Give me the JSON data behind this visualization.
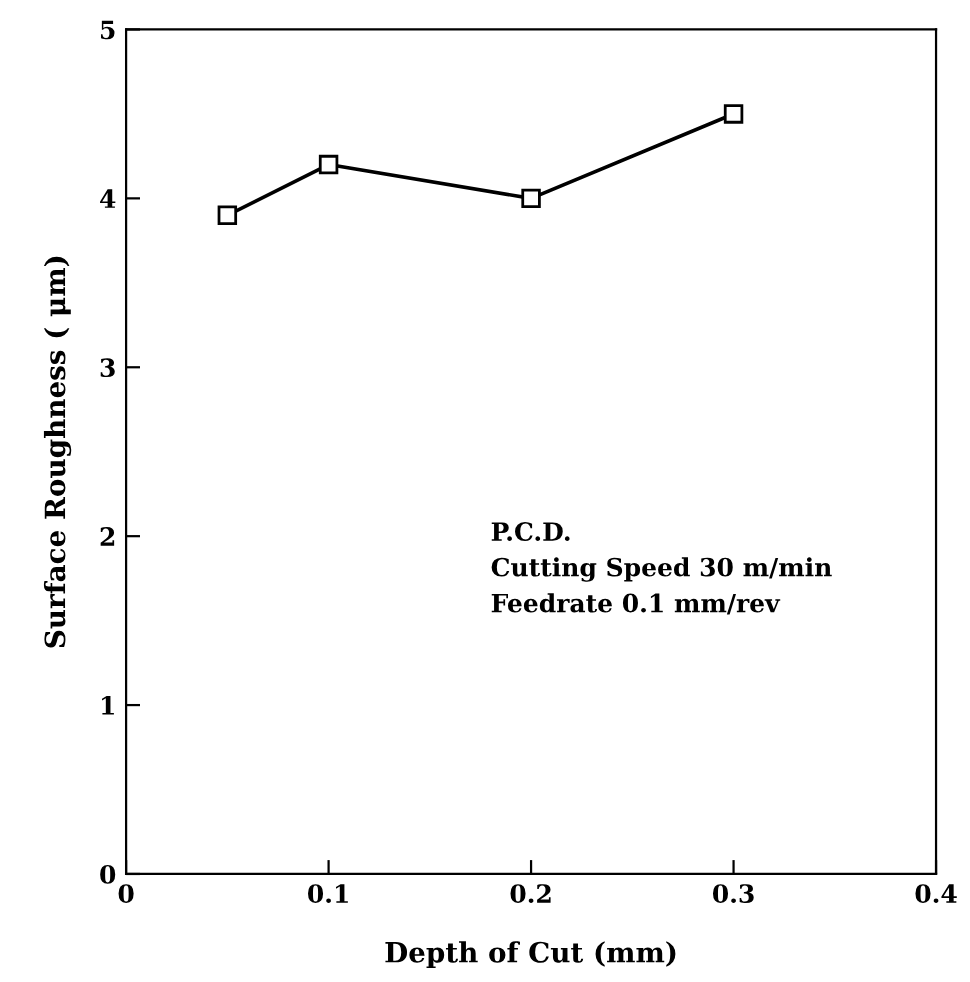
{
  "chart_data": {
    "type": "line",
    "xlabel": "Depth of Cut (mm)",
    "ylabel": "Surface Roughness ( μm)",
    "x": [
      0.05,
      0.1,
      0.2,
      0.3
    ],
    "series": [
      {
        "color": "#000000",
        "values": [
          3.9,
          4.2,
          4.0,
          4.5
        ]
      }
    ],
    "marker": "square",
    "line_style": "solid",
    "grid": false,
    "legend": false,
    "xlim": [
      0,
      0.4
    ],
    "ylim": [
      0,
      5
    ],
    "xticks": [
      0,
      0.1,
      0.2,
      0.3,
      0.4
    ],
    "yticks": [
      0,
      1,
      2,
      3,
      4,
      5
    ],
    "annotations": [
      "P.C.D.\nCutting Speed 30 m/min\nFeedrate 0.1 mm/rev"
    ]
  }
}
